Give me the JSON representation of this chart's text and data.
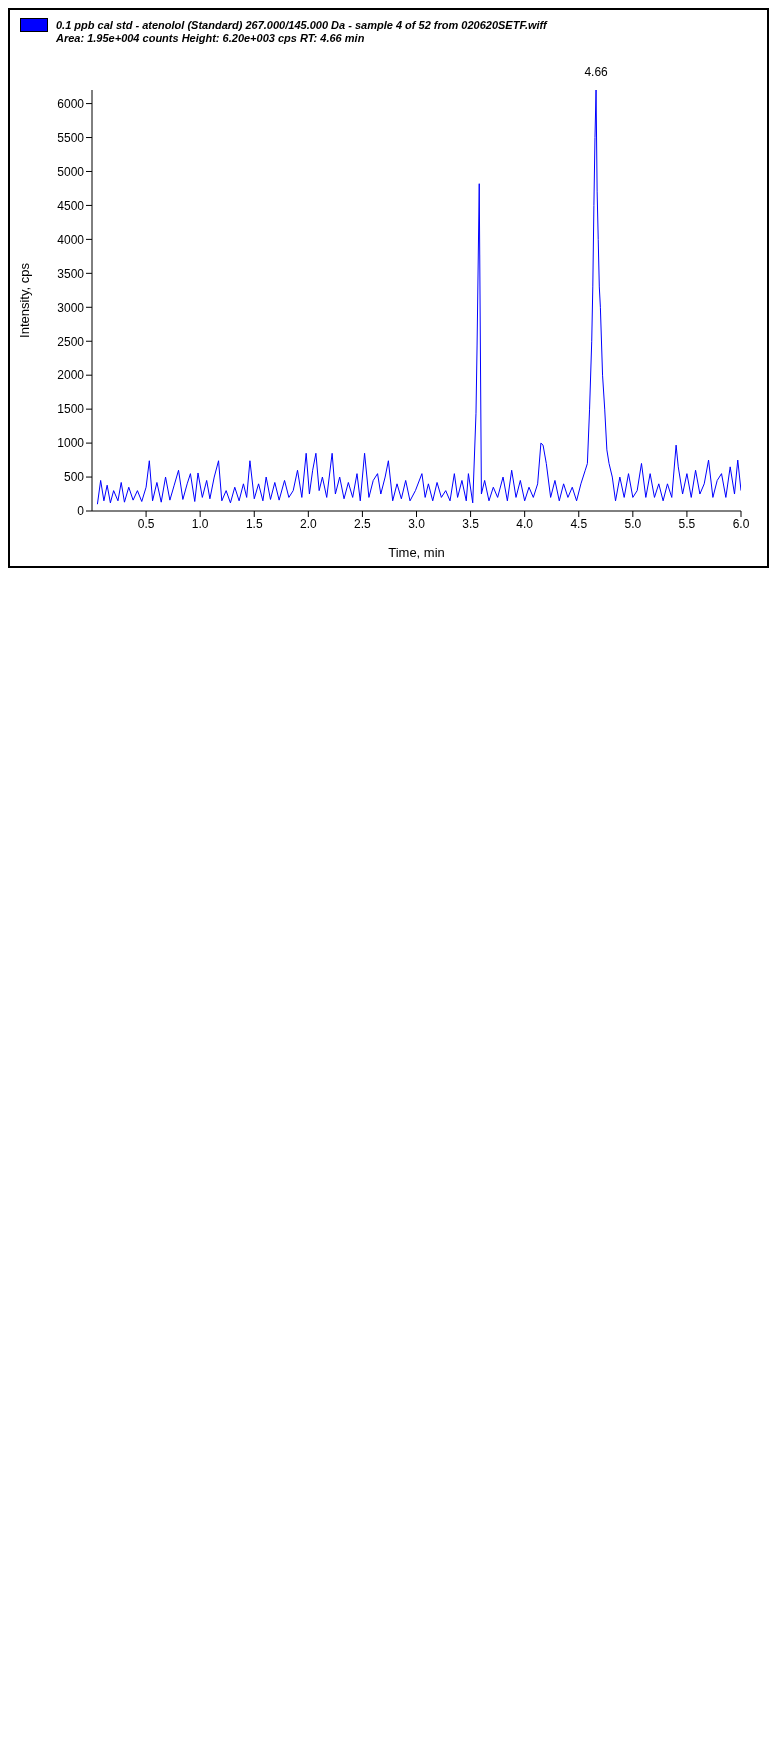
{
  "chart_data": {
    "type": "line",
    "subtitle": "Area: 1.95e+004 counts  Height: 6.20e+003 cps  RT: 4.66 min",
    "xlabel": "Time, min",
    "ylabel": "Intensity, cps",
    "legend": "top left",
    "marker": "none",
    "grid": false,
    "xlim": [
      0,
      6.0
    ],
    "xticks": [
      0.5,
      {
        "value": 1,
        "label": "1.0"
      },
      1.5,
      {
        "value": 2,
        "label": "2.0"
      },
      2.5,
      {
        "value": 3,
        "label": "3.0"
      },
      3.5,
      {
        "value": 4,
        "label": "4.0"
      },
      4.5,
      {
        "value": 5,
        "label": "5.0"
      },
      5.5,
      {
        "value": 6,
        "label": "6.0"
      }
    ],
    "ylim": [
      0,
      6200
    ],
    "yticks": [
      0,
      500,
      1000,
      1500,
      2000,
      2500,
      3000,
      3500,
      4000,
      4500,
      5000,
      5500,
      6000
    ],
    "annotations": [
      {
        "text": "4.66",
        "x": 4.66,
        "y": 6200
      }
    ],
    "series": [
      {
        "name": "0.1 ppb cal std - atenolol (Standard) 267.000/145.000 Da - sample 4 of 52 from 020620SETF.wiff",
        "color": "#0000ff",
        "x": [
          0.05,
          0.08,
          0.11,
          0.14,
          0.17,
          0.2,
          0.24,
          0.27,
          0.3,
          0.34,
          0.38,
          0.42,
          0.46,
          0.5,
          0.53,
          0.56,
          0.6,
          0.64,
          0.68,
          0.72,
          0.76,
          0.8,
          0.84,
          0.88,
          0.91,
          0.95,
          0.98,
          1.02,
          1.06,
          1.09,
          1.13,
          1.17,
          1.2,
          1.24,
          1.28,
          1.32,
          1.36,
          1.4,
          1.43,
          1.46,
          1.5,
          1.54,
          1.58,
          1.61,
          1.65,
          1.69,
          1.73,
          1.78,
          1.82,
          1.86,
          1.9,
          1.94,
          1.98,
          2.01,
          2.04,
          2.07,
          2.1,
          2.13,
          2.17,
          2.22,
          2.25,
          2.29,
          2.33,
          2.37,
          2.41,
          2.45,
          2.48,
          2.52,
          2.56,
          2.6,
          2.64,
          2.67,
          2.71,
          2.74,
          2.78,
          2.82,
          2.86,
          2.9,
          2.94,
          2.99,
          3.05,
          3.08,
          3.11,
          3.15,
          3.19,
          3.23,
          3.27,
          3.31,
          3.35,
          3.38,
          3.42,
          3.46,
          3.48,
          3.52,
          3.55,
          3.56,
          3.58,
          3.6,
          3.63,
          3.67,
          3.71,
          3.75,
          3.8,
          3.84,
          3.88,
          3.92,
          3.96,
          4.0,
          4.04,
          4.08,
          4.12,
          4.15,
          4.17,
          4.2,
          4.24,
          4.28,
          4.32,
          4.36,
          4.4,
          4.44,
          4.48,
          4.52,
          4.56,
          4.58,
          4.6,
          4.62,
          4.63,
          4.64,
          4.65,
          4.66,
          4.67,
          4.68,
          4.69,
          4.7,
          4.72,
          4.74,
          4.76,
          4.78,
          4.81,
          4.84,
          4.88,
          4.92,
          4.96,
          5.0,
          5.04,
          5.08,
          5.12,
          5.16,
          5.2,
          5.24,
          5.28,
          5.32,
          5.36,
          5.4,
          5.42,
          5.46,
          5.5,
          5.54,
          5.58,
          5.62,
          5.66,
          5.7,
          5.74,
          5.78,
          5.82,
          5.86,
          5.9,
          5.94,
          5.97,
          6.0
        ],
        "values": [
          100,
          450,
          150,
          380,
          120,
          300,
          150,
          420,
          130,
          350,
          160,
          300,
          140,
          350,
          740,
          150,
          420,
          130,
          500,
          160,
          380,
          600,
          170,
          400,
          550,
          140,
          560,
          200,
          450,
          180,
          500,
          740,
          150,
          300,
          120,
          350,
          150,
          400,
          200,
          740,
          180,
          400,
          150,
          500,
          170,
          420,
          160,
          450,
          200,
          300,
          600,
          200,
          850,
          250,
          600,
          850,
          300,
          500,
          200,
          850,
          250,
          500,
          180,
          420,
          200,
          550,
          150,
          850,
          200,
          450,
          550,
          250,
          500,
          740,
          150,
          400,
          180,
          450,
          150,
          300,
          550,
          200,
          400,
          150,
          420,
          200,
          300,
          150,
          550,
          200,
          450,
          150,
          550,
          120,
          1440,
          2430,
          4820,
          250,
          450,
          150,
          350,
          200,
          500,
          150,
          600,
          200,
          450,
          150,
          350,
          200,
          400,
          1000,
          970,
          700,
          200,
          450,
          150,
          400,
          200,
          350,
          150,
          400,
          600,
          700,
          1500,
          2500,
          3300,
          4500,
          5500,
          6200,
          4700,
          4000,
          3300,
          3000,
          2000,
          1500,
          900,
          700,
          500,
          150,
          500,
          200,
          550,
          200,
          300,
          700,
          200,
          550,
          200,
          400,
          150,
          400,
          200,
          970,
          650,
          250,
          550,
          200,
          600,
          250,
          400,
          750,
          200,
          450,
          550,
          200,
          650,
          250,
          750,
          300
        ]
      }
    ]
  }
}
